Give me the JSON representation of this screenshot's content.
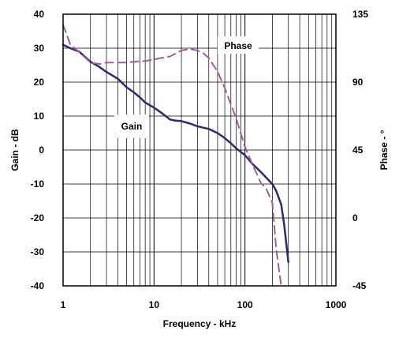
{
  "chart_data": {
    "type": "line",
    "x_scale": "log",
    "xlim": [
      1,
      1000
    ],
    "x_ticks": [
      1,
      10,
      100,
      1000
    ],
    "x_tick_labels": [
      "1",
      "10",
      "100",
      "1000"
    ],
    "xlabel": "Frequency - kHz",
    "ylabel_left": "Gain - dB",
    "ylim_left": [
      -40,
      40
    ],
    "y_ticks_left": [
      40,
      30,
      20,
      10,
      0,
      -10,
      -20,
      -30,
      -40
    ],
    "y_tick_labels_left": [
      "40",
      "30",
      "20",
      "10",
      "0",
      "-10",
      "-20",
      "-30",
      "-40"
    ],
    "ylabel_right": "Phase - °",
    "ylim_right": [
      -45,
      135
    ],
    "y_ticks_right": [
      135,
      90,
      45,
      0,
      -45
    ],
    "y_tick_labels_right": [
      "135",
      "90",
      "45",
      "0",
      "-45"
    ],
    "grid": true,
    "series": [
      {
        "name": "Gain",
        "axis": "left",
        "style": "solid",
        "color": "#2e2876",
        "x": [
          1,
          1.2,
          1.5,
          2,
          2.5,
          3,
          4,
          5,
          6,
          7,
          8,
          10,
          12,
          15,
          17,
          20,
          25,
          30,
          40,
          50,
          60,
          70,
          80,
          100,
          120,
          150,
          200,
          220,
          250,
          270,
          300
        ],
        "y": [
          31,
          30,
          29,
          26,
          24.5,
          23,
          21,
          18.5,
          17,
          15.5,
          14,
          12.5,
          11,
          9,
          8.7,
          8.5,
          7.8,
          7,
          6.2,
          5,
          3.5,
          2,
          0.5,
          -1.5,
          -4,
          -6.5,
          -10,
          -12,
          -16,
          -22,
          -33
        ]
      },
      {
        "name": "Phase",
        "axis": "right",
        "style": "dashed",
        "color": "#a65a99",
        "x": [
          1,
          1.2,
          1.5,
          2,
          2.5,
          3,
          4,
          5,
          6,
          8,
          10,
          12,
          15,
          20,
          25,
          30,
          35,
          40,
          50,
          60,
          80,
          100,
          120,
          150,
          170,
          200,
          220,
          250
        ],
        "y": [
          128,
          115,
          110,
          103,
          102,
          103,
          103,
          103,
          103.5,
          104,
          105,
          106,
          107,
          111,
          112,
          111,
          109,
          106,
          97,
          86,
          66,
          47,
          36,
          23,
          20,
          10,
          -20,
          -45
        ]
      }
    ],
    "annotations": [
      {
        "text": "Phase",
        "series": "Phase"
      },
      {
        "text": "Gain",
        "series": "Gain"
      }
    ]
  },
  "colors": {
    "gain": "#2e2876",
    "phase": "#a65a99",
    "grid": "#000000"
  }
}
